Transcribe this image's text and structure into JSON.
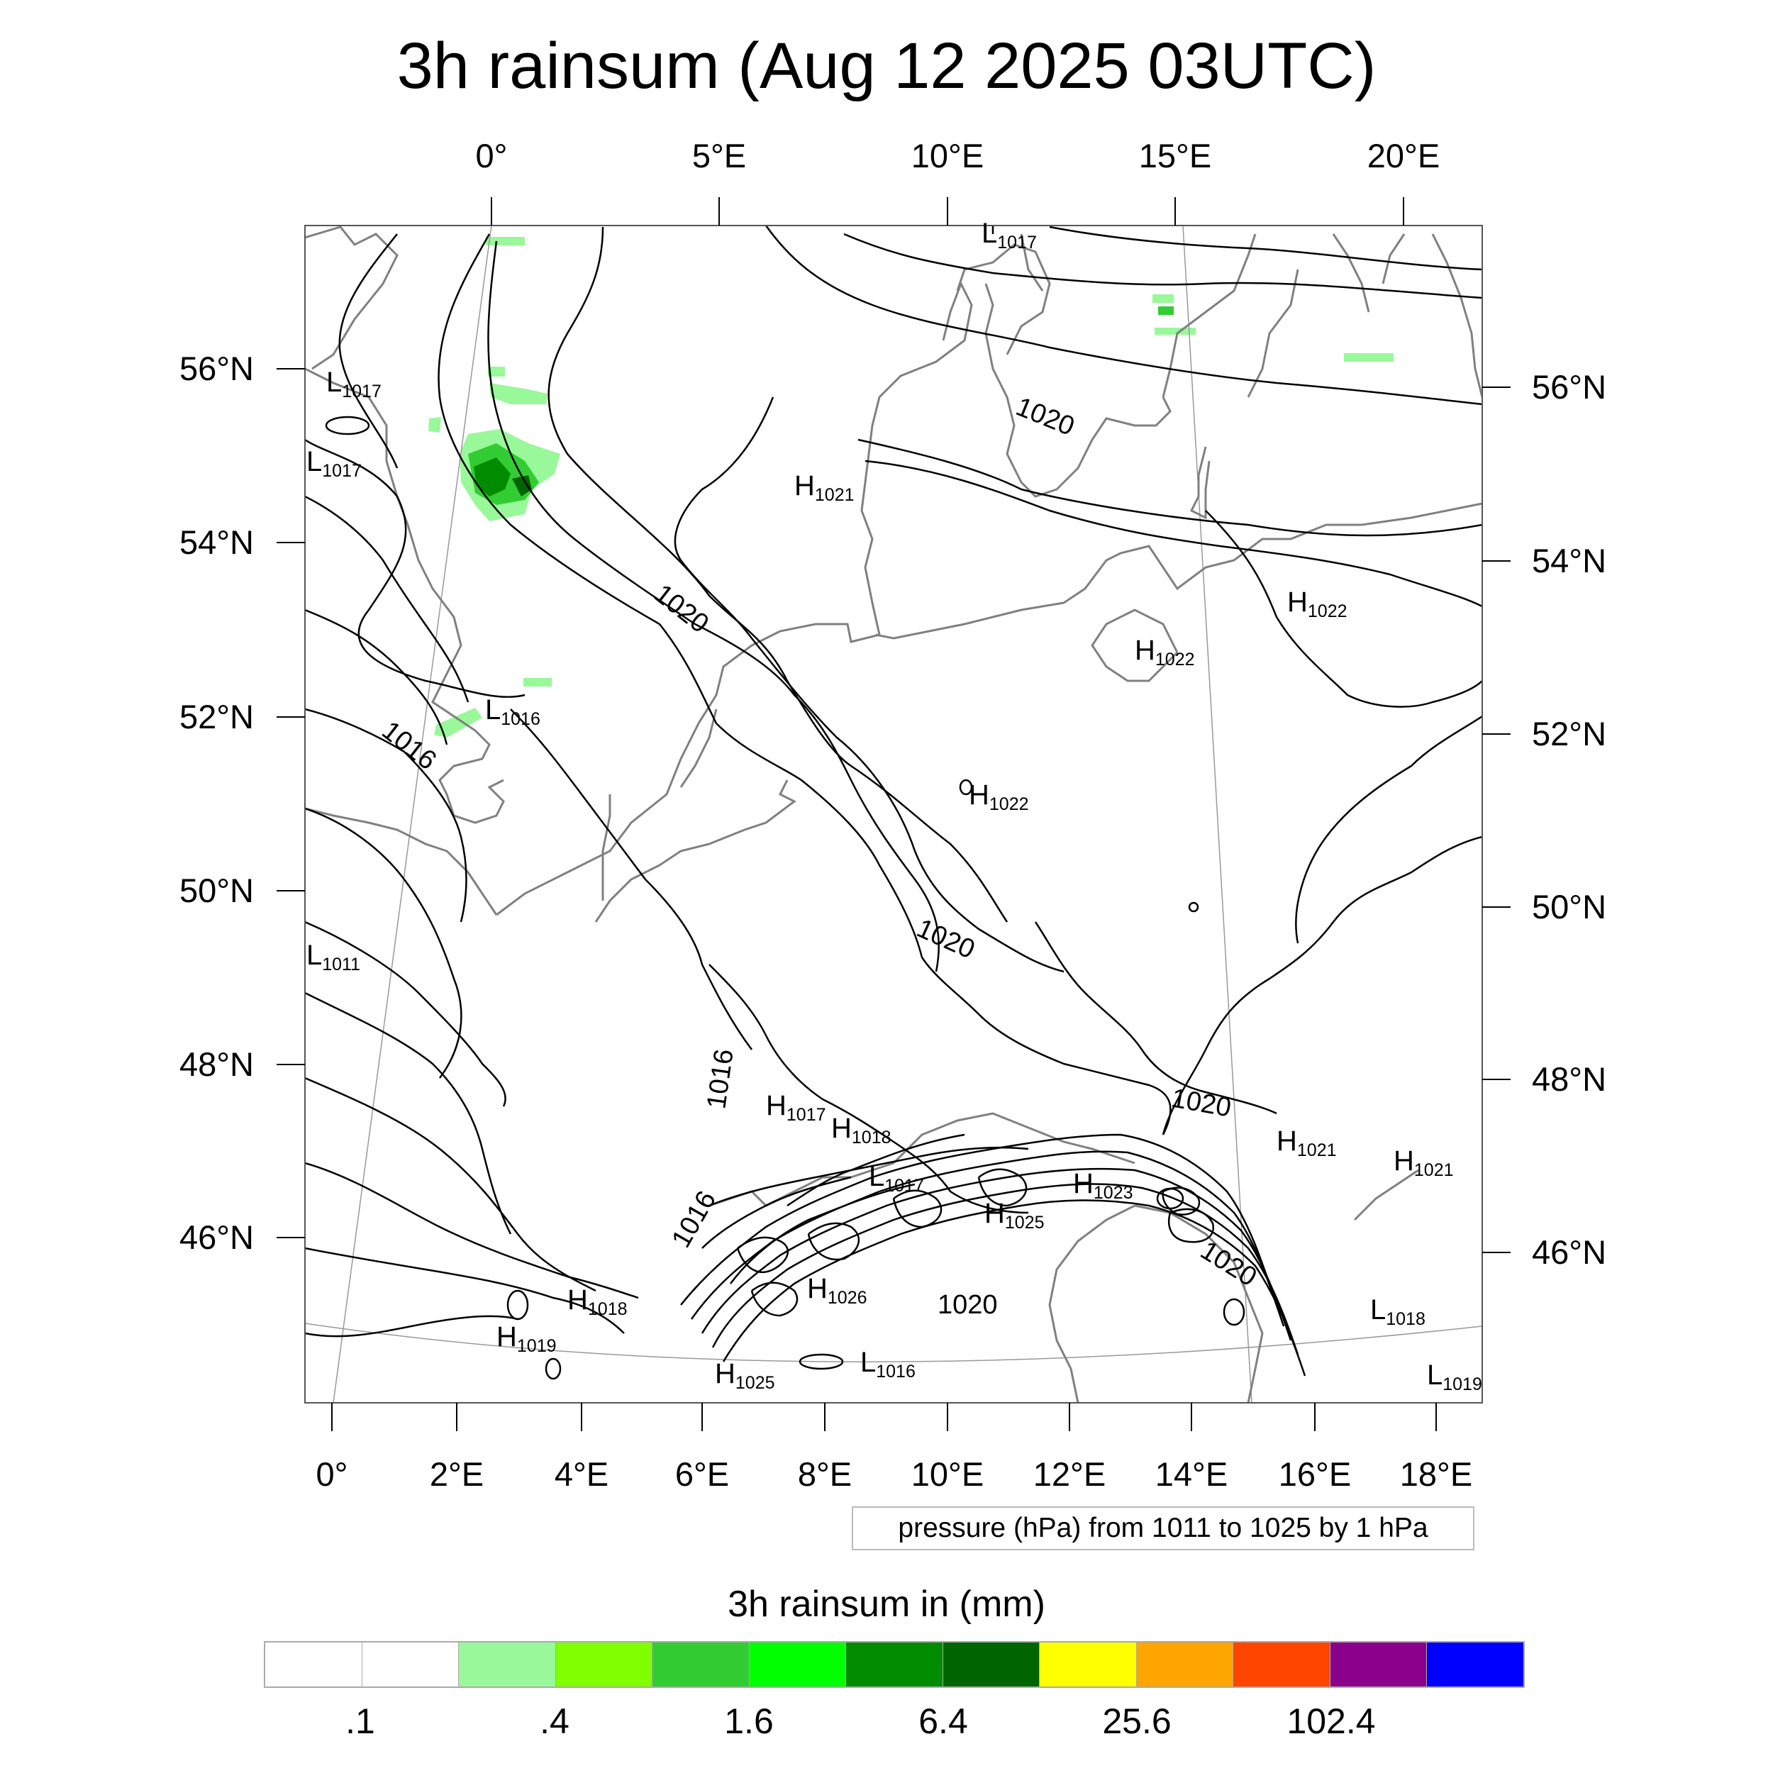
{
  "title": "3h rainsum (Aug 12 2025 03UTC)",
  "top_lon_labels": [
    "0°",
    "5°E",
    "10°E",
    "15°E",
    "20°E"
  ],
  "bottom_lon_labels": [
    "0°",
    "2°E",
    "4°E",
    "6°E",
    "8°E",
    "10°E",
    "12°E",
    "14°E",
    "16°E",
    "18°E"
  ],
  "left_lat_labels": [
    "56°N",
    "54°N",
    "52°N",
    "50°N",
    "48°N",
    "46°N"
  ],
  "right_lat_labels": [
    "56°N",
    "54°N",
    "52°N",
    "50°N",
    "48°N",
    "46°N"
  ],
  "pressure_note": "pressure (hPa) from 1011 to 1025 by 1 hPa",
  "colorbar": {
    "title": "3h rainsum in (mm)",
    "colors": [
      "#ffffff",
      "#ffffff",
      "#99f899",
      "#7fff00",
      "#32cd32",
      "#00ff00",
      "#008b00",
      "#006400",
      "#ffff00",
      "#ffa500",
      "#ff4500",
      "#8b008b",
      "#0000ff"
    ],
    "labels": [
      ".1",
      ".4",
      "1.6",
      "6.4",
      "25.6",
      "102.4"
    ]
  },
  "pressure_centers": [
    {
      "type": "L",
      "value": "1017"
    },
    {
      "type": "L",
      "value": "1017"
    },
    {
      "type": "L",
      "value": "1017"
    },
    {
      "type": "H",
      "value": "1021"
    },
    {
      "type": "H",
      "value": "1022"
    },
    {
      "type": "H",
      "value": "1022"
    },
    {
      "type": "L",
      "value": "1016"
    },
    {
      "type": "H",
      "value": "1022"
    },
    {
      "type": "L",
      "value": "1011"
    },
    {
      "type": "H",
      "value": "1017"
    },
    {
      "type": "H",
      "value": "1018"
    },
    {
      "type": "H",
      "value": "1021"
    },
    {
      "type": "H",
      "value": "1021"
    },
    {
      "type": "L",
      "value": "1017"
    },
    {
      "type": "H",
      "value": "1023"
    },
    {
      "type": "H",
      "value": "1025"
    },
    {
      "type": "H",
      "value": "1018"
    },
    {
      "type": "H",
      "value": "1026"
    },
    {
      "type": "H",
      "value": "1019"
    },
    {
      "type": "L",
      "value": "1018"
    },
    {
      "type": "H",
      "value": "1025"
    },
    {
      "type": "L",
      "value": "1016"
    },
    {
      "type": "L",
      "value": "1019"
    }
  ],
  "isobar_labels": [
    "1020",
    "1020",
    "1016",
    "1020",
    "1016",
    "1020",
    "1016",
    "1020",
    "1020"
  ]
}
